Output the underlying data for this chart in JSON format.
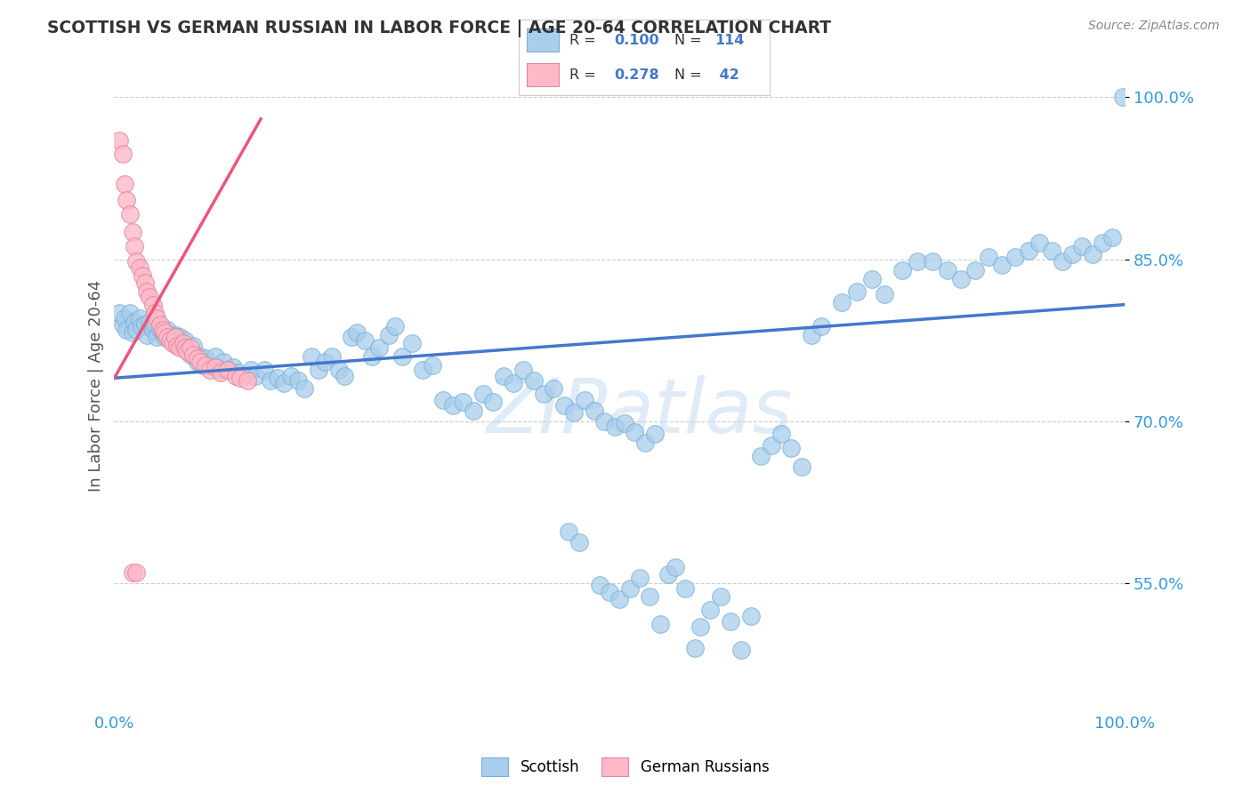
{
  "title": "SCOTTISH VS GERMAN RUSSIAN IN LABOR FORCE | AGE 20-64 CORRELATION CHART",
  "source": "Source: ZipAtlas.com",
  "ylabel": "In Labor Force | Age 20-64",
  "ytick_labels": [
    "100.0%",
    "85.0%",
    "70.0%",
    "55.0%"
  ],
  "ytick_positions": [
    1.0,
    0.85,
    0.7,
    0.55
  ],
  "xtick_labels": [
    "0.0%",
    "",
    "",
    "",
    "",
    "",
    "",
    "",
    "",
    "",
    "100.0%"
  ],
  "xlim": [
    0.0,
    1.0
  ],
  "ylim": [
    0.435,
    1.03
  ],
  "watermark_text": "ZIPatlas",
  "blue_color": "#A8CEEC",
  "blue_edge": "#7AAFD4",
  "blue_line": "#4477CC",
  "pink_color": "#FFB8C8",
  "pink_edge": "#DD8898",
  "pink_line": "#EE5577",
  "title_color": "#333333",
  "axis_label_color": "#555555",
  "tick_color": "#3399DD",
  "grid_color": "#CCCCCC",
  "blue_trend_x": [
    0.0,
    1.0
  ],
  "blue_trend_y": [
    0.74,
    0.808
  ],
  "pink_trend_x": [
    0.0,
    0.145
  ],
  "pink_trend_y": [
    0.74,
    0.98
  ],
  "blue_points": [
    [
      0.005,
      0.8
    ],
    [
      0.008,
      0.79
    ],
    [
      0.01,
      0.795
    ],
    [
      0.012,
      0.785
    ],
    [
      0.015,
      0.8
    ],
    [
      0.018,
      0.782
    ],
    [
      0.02,
      0.792
    ],
    [
      0.022,
      0.785
    ],
    [
      0.025,
      0.795
    ],
    [
      0.027,
      0.788
    ],
    [
      0.03,
      0.79
    ],
    [
      0.032,
      0.78
    ],
    [
      0.035,
      0.792
    ],
    [
      0.038,
      0.785
    ],
    [
      0.04,
      0.79
    ],
    [
      0.042,
      0.778
    ],
    [
      0.045,
      0.785
    ],
    [
      0.048,
      0.782
    ],
    [
      0.05,
      0.778
    ],
    [
      0.052,
      0.785
    ],
    [
      0.055,
      0.78
    ],
    [
      0.058,
      0.775
    ],
    [
      0.06,
      0.78
    ],
    [
      0.063,
      0.772
    ],
    [
      0.065,
      0.778
    ],
    [
      0.068,
      0.77
    ],
    [
      0.07,
      0.775
    ],
    [
      0.072,
      0.768
    ],
    [
      0.075,
      0.762
    ],
    [
      0.078,
      0.77
    ],
    [
      0.082,
      0.755
    ],
    [
      0.085,
      0.76
    ],
    [
      0.088,
      0.752
    ],
    [
      0.09,
      0.758
    ],
    [
      0.095,
      0.752
    ],
    [
      0.1,
      0.76
    ],
    [
      0.105,
      0.748
    ],
    [
      0.108,
      0.755
    ],
    [
      0.112,
      0.748
    ],
    [
      0.118,
      0.75
    ],
    [
      0.122,
      0.745
    ],
    [
      0.128,
      0.742
    ],
    [
      0.135,
      0.748
    ],
    [
      0.14,
      0.742
    ],
    [
      0.148,
      0.748
    ],
    [
      0.155,
      0.738
    ],
    [
      0.162,
      0.74
    ],
    [
      0.168,
      0.735
    ],
    [
      0.175,
      0.742
    ],
    [
      0.182,
      0.738
    ],
    [
      0.188,
      0.73
    ],
    [
      0.195,
      0.76
    ],
    [
      0.202,
      0.748
    ],
    [
      0.208,
      0.755
    ],
    [
      0.215,
      0.76
    ],
    [
      0.222,
      0.748
    ],
    [
      0.228,
      0.742
    ],
    [
      0.235,
      0.778
    ],
    [
      0.24,
      0.782
    ],
    [
      0.248,
      0.775
    ],
    [
      0.255,
      0.76
    ],
    [
      0.262,
      0.768
    ],
    [
      0.272,
      0.78
    ],
    [
      0.278,
      0.788
    ],
    [
      0.285,
      0.76
    ],
    [
      0.295,
      0.772
    ],
    [
      0.305,
      0.748
    ],
    [
      0.315,
      0.752
    ],
    [
      0.325,
      0.72
    ],
    [
      0.335,
      0.715
    ],
    [
      0.345,
      0.718
    ],
    [
      0.355,
      0.71
    ],
    [
      0.365,
      0.725
    ],
    [
      0.375,
      0.718
    ],
    [
      0.385,
      0.742
    ],
    [
      0.395,
      0.735
    ],
    [
      0.405,
      0.748
    ],
    [
      0.415,
      0.738
    ],
    [
      0.425,
      0.725
    ],
    [
      0.435,
      0.73
    ],
    [
      0.445,
      0.715
    ],
    [
      0.455,
      0.708
    ],
    [
      0.465,
      0.72
    ],
    [
      0.475,
      0.71
    ],
    [
      0.485,
      0.7
    ],
    [
      0.495,
      0.695
    ],
    [
      0.505,
      0.698
    ],
    [
      0.515,
      0.69
    ],
    [
      0.525,
      0.68
    ],
    [
      0.535,
      0.688
    ],
    [
      0.48,
      0.548
    ],
    [
      0.49,
      0.542
    ],
    [
      0.5,
      0.535
    ],
    [
      0.51,
      0.545
    ],
    [
      0.52,
      0.555
    ],
    [
      0.53,
      0.538
    ],
    [
      0.45,
      0.598
    ],
    [
      0.46,
      0.588
    ],
    [
      0.54,
      0.512
    ],
    [
      0.548,
      0.558
    ],
    [
      0.555,
      0.565
    ],
    [
      0.565,
      0.545
    ],
    [
      0.575,
      0.49
    ],
    [
      0.58,
      0.51
    ],
    [
      0.59,
      0.525
    ],
    [
      0.6,
      0.538
    ],
    [
      0.61,
      0.515
    ],
    [
      0.62,
      0.488
    ],
    [
      0.63,
      0.52
    ],
    [
      0.64,
      0.668
    ],
    [
      0.65,
      0.678
    ],
    [
      0.66,
      0.688
    ],
    [
      0.67,
      0.675
    ],
    [
      0.68,
      0.658
    ],
    [
      0.69,
      0.78
    ],
    [
      0.7,
      0.788
    ],
    [
      0.72,
      0.81
    ],
    [
      0.735,
      0.82
    ],
    [
      0.75,
      0.832
    ],
    [
      0.762,
      0.818
    ],
    [
      0.78,
      0.84
    ],
    [
      0.795,
      0.848
    ],
    [
      0.81,
      0.848
    ],
    [
      0.825,
      0.84
    ],
    [
      0.838,
      0.832
    ],
    [
      0.852,
      0.84
    ],
    [
      0.865,
      0.852
    ],
    [
      0.878,
      0.845
    ],
    [
      0.892,
      0.852
    ],
    [
      0.905,
      0.858
    ],
    [
      0.915,
      0.865
    ],
    [
      0.928,
      0.858
    ],
    [
      0.938,
      0.848
    ],
    [
      0.948,
      0.855
    ],
    [
      0.958,
      0.862
    ],
    [
      0.968,
      0.855
    ],
    [
      0.978,
      0.865
    ],
    [
      0.988,
      0.87
    ],
    [
      0.998,
      1.0
    ]
  ],
  "pink_points": [
    [
      0.005,
      0.96
    ],
    [
      0.008,
      0.948
    ],
    [
      0.01,
      0.92
    ],
    [
      0.012,
      0.905
    ],
    [
      0.015,
      0.892
    ],
    [
      0.018,
      0.875
    ],
    [
      0.02,
      0.862
    ],
    [
      0.022,
      0.848
    ],
    [
      0.025,
      0.842
    ],
    [
      0.028,
      0.835
    ],
    [
      0.03,
      0.828
    ],
    [
      0.032,
      0.82
    ],
    [
      0.035,
      0.815
    ],
    [
      0.038,
      0.808
    ],
    [
      0.04,
      0.8
    ],
    [
      0.042,
      0.795
    ],
    [
      0.045,
      0.79
    ],
    [
      0.048,
      0.785
    ],
    [
      0.05,
      0.782
    ],
    [
      0.052,
      0.778
    ],
    [
      0.055,
      0.775
    ],
    [
      0.058,
      0.772
    ],
    [
      0.06,
      0.778
    ],
    [
      0.062,
      0.77
    ],
    [
      0.065,
      0.768
    ],
    [
      0.068,
      0.772
    ],
    [
      0.07,
      0.768
    ],
    [
      0.072,
      0.765
    ],
    [
      0.075,
      0.768
    ],
    [
      0.078,
      0.762
    ],
    [
      0.082,
      0.758
    ],
    [
      0.085,
      0.755
    ],
    [
      0.09,
      0.752
    ],
    [
      0.095,
      0.748
    ],
    [
      0.1,
      0.75
    ],
    [
      0.105,
      0.745
    ],
    [
      0.112,
      0.748
    ],
    [
      0.12,
      0.742
    ],
    [
      0.125,
      0.74
    ],
    [
      0.132,
      0.738
    ],
    [
      0.018,
      0.56
    ],
    [
      0.022,
      0.56
    ]
  ]
}
